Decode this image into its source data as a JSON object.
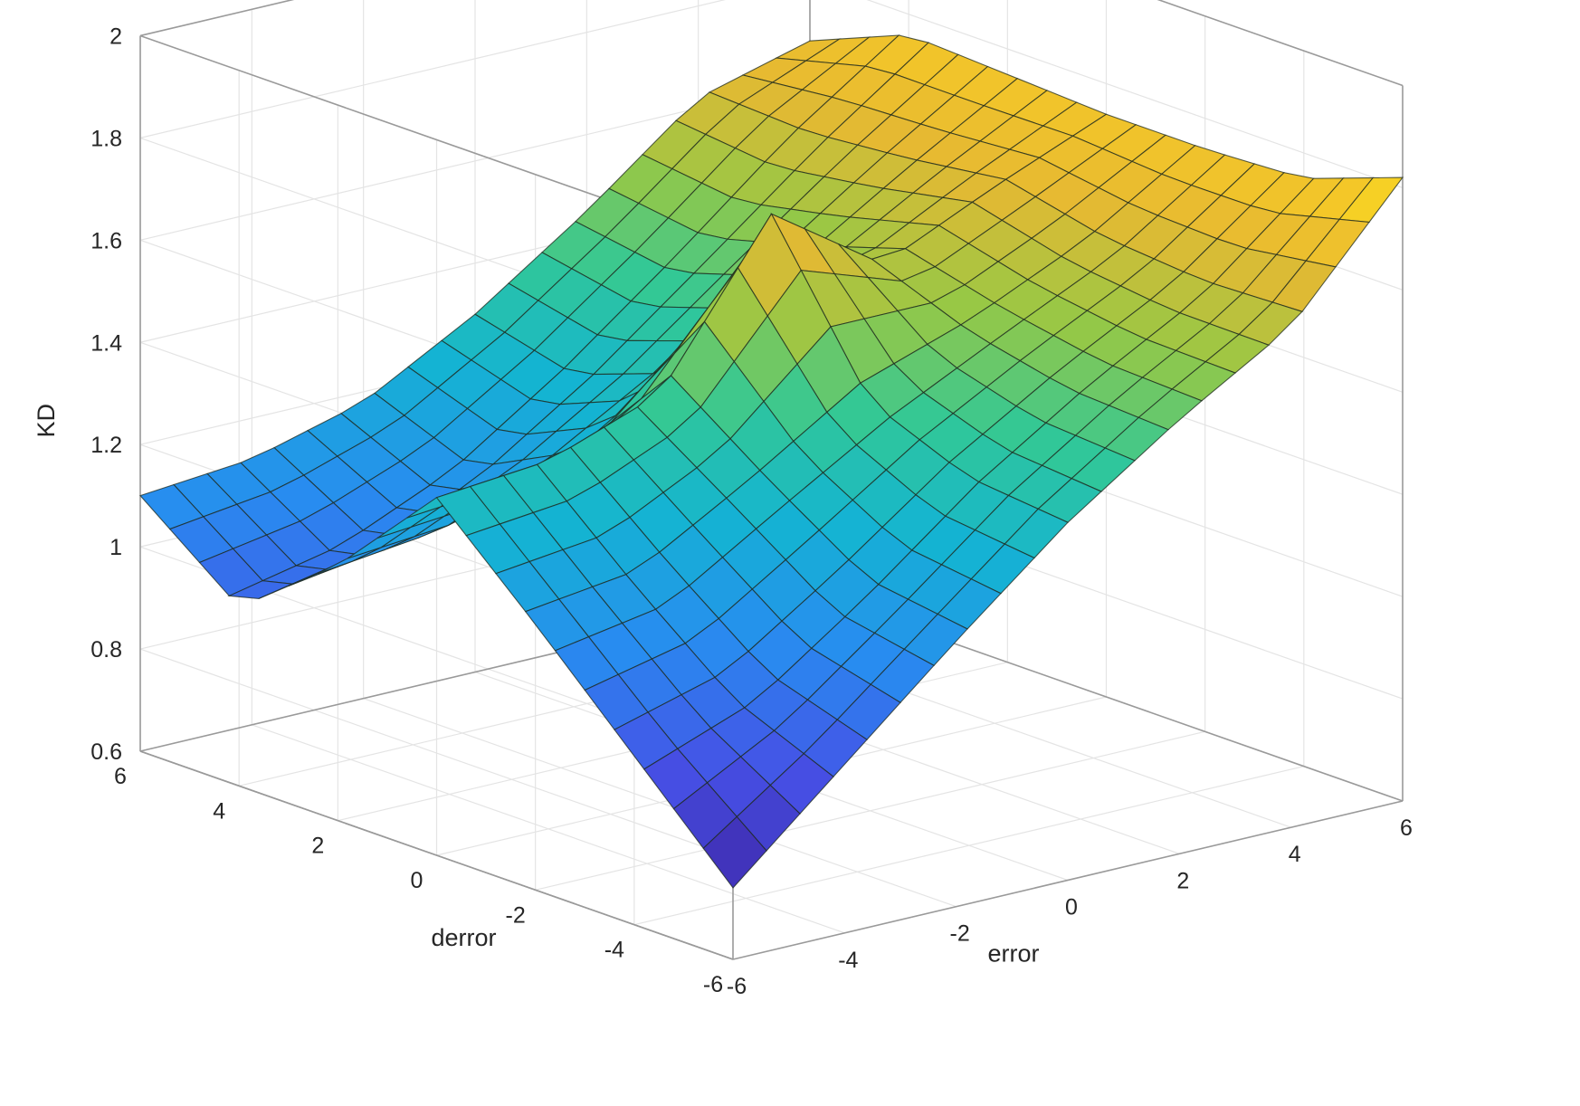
{
  "chart_data": {
    "type": "surface",
    "title": "",
    "xlabel": "error",
    "ylabel": "derror",
    "zlabel": "KD",
    "x_ticks": [
      "-6",
      "-4",
      "-2",
      "0",
      "2",
      "4",
      "6"
    ],
    "y_ticks": [
      "-6",
      "-4",
      "-2",
      "0",
      "2",
      "4",
      "6"
    ],
    "z_ticks": [
      "0.6",
      "0.8",
      "1",
      "1.2",
      "1.4",
      "1.6",
      "1.8",
      "2"
    ],
    "xlim": [
      -6,
      6
    ],
    "ylim": [
      -6,
      6
    ],
    "zlim": [
      0.6,
      2
    ],
    "grid": true,
    "colormap": "parula",
    "mesh_resolution": 21,
    "surface_samples": {
      "x": [
        -6,
        -4,
        -2,
        0,
        2,
        4,
        6
      ],
      "y": [
        -6,
        -4,
        -2,
        0,
        2,
        4,
        6
      ],
      "z": [
        [
          0.74,
          0.93,
          1.12,
          1.3,
          1.45,
          1.58,
          1.82
        ],
        [
          0.93,
          1.0,
          1.15,
          1.32,
          1.46,
          1.58,
          1.75
        ],
        [
          1.12,
          1.15,
          1.28,
          1.4,
          1.5,
          1.6,
          1.74
        ],
        [
          1.3,
          1.32,
          1.4,
          1.7,
          1.55,
          1.65,
          1.74
        ],
        [
          1.1,
          1.12,
          1.2,
          1.32,
          1.48,
          1.62,
          1.75
        ],
        [
          0.95,
          1.0,
          1.1,
          1.25,
          1.42,
          1.6,
          1.76
        ],
        [
          1.1,
          1.12,
          1.18,
          1.3,
          1.45,
          1.62,
          1.68
        ]
      ]
    }
  }
}
